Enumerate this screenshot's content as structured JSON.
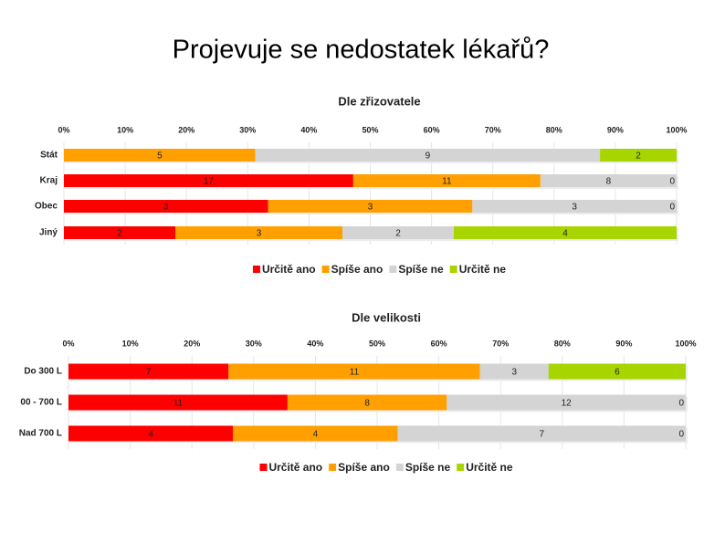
{
  "slide_title": "Projevuje se nedostatek lékařů?",
  "chart_data": [
    {
      "type": "bar",
      "orientation": "horizontal",
      "stacked": "percent",
      "title": "Dle zřizovatele",
      "categories": [
        "Stát",
        "Kraj",
        "Obec",
        "Jiný"
      ],
      "series": [
        {
          "name": "Určitě ano",
          "color": "#ff0000",
          "values": [
            0,
            17,
            3,
            2
          ]
        },
        {
          "name": "Spíše ano",
          "color": "#ffa000",
          "values": [
            5,
            11,
            3,
            3
          ]
        },
        {
          "name": "Spíše ne",
          "color": "#d4d4d4",
          "values": [
            9,
            8,
            3,
            2
          ]
        },
        {
          "name": "Určitě ne",
          "color": "#a8d400",
          "values": [
            2,
            0,
            0,
            4
          ]
        }
      ],
      "xlim": [
        0,
        100
      ],
      "xticks": [
        {
          "value": 0,
          "label": "0%"
        },
        {
          "value": 10,
          "label": "10%"
        },
        {
          "value": 20,
          "label": "20%"
        },
        {
          "value": 30,
          "label": "30%"
        },
        {
          "value": 40,
          "label": "40%"
        },
        {
          "value": 50,
          "label": "50%"
        },
        {
          "value": 60,
          "label": "60%"
        },
        {
          "value": 70,
          "label": "70%"
        },
        {
          "value": 80,
          "label": "80%"
        },
        {
          "value": 90,
          "label": "90%"
        },
        {
          "value": 100,
          "label": "100%"
        }
      ],
      "grid": true,
      "legend": "bottom"
    },
    {
      "type": "bar",
      "orientation": "horizontal",
      "stacked": "percent",
      "title": "Dle velikosti",
      "categories": [
        "Do 300 L",
        "00 - 700 L",
        "Nad 700 L"
      ],
      "series": [
        {
          "name": "Určitě ano",
          "color": "#ff0000",
          "values": [
            7,
            11,
            4
          ]
        },
        {
          "name": "Spíše ano",
          "color": "#ffa000",
          "values": [
            11,
            8,
            4
          ]
        },
        {
          "name": "Spíše ne",
          "color": "#d4d4d4",
          "values": [
            3,
            12,
            7
          ]
        },
        {
          "name": "Určitě ne",
          "color": "#a8d400",
          "values": [
            6,
            0,
            0
          ]
        }
      ],
      "xlim": [
        0,
        100
      ],
      "xticks": [
        {
          "value": 0,
          "label": "0%"
        },
        {
          "value": 10,
          "label": "10%"
        },
        {
          "value": 20,
          "label": "20%"
        },
        {
          "value": 30,
          "label": "30%"
        },
        {
          "value": 40,
          "label": "40%"
        },
        {
          "value": 50,
          "label": "50%"
        },
        {
          "value": 60,
          "label": "60%"
        },
        {
          "value": 70,
          "label": "70%"
        },
        {
          "value": 80,
          "label": "80%"
        },
        {
          "value": 90,
          "label": "90%"
        },
        {
          "value": 100,
          "label": "100%"
        }
      ],
      "grid": true,
      "legend": "bottom"
    }
  ]
}
